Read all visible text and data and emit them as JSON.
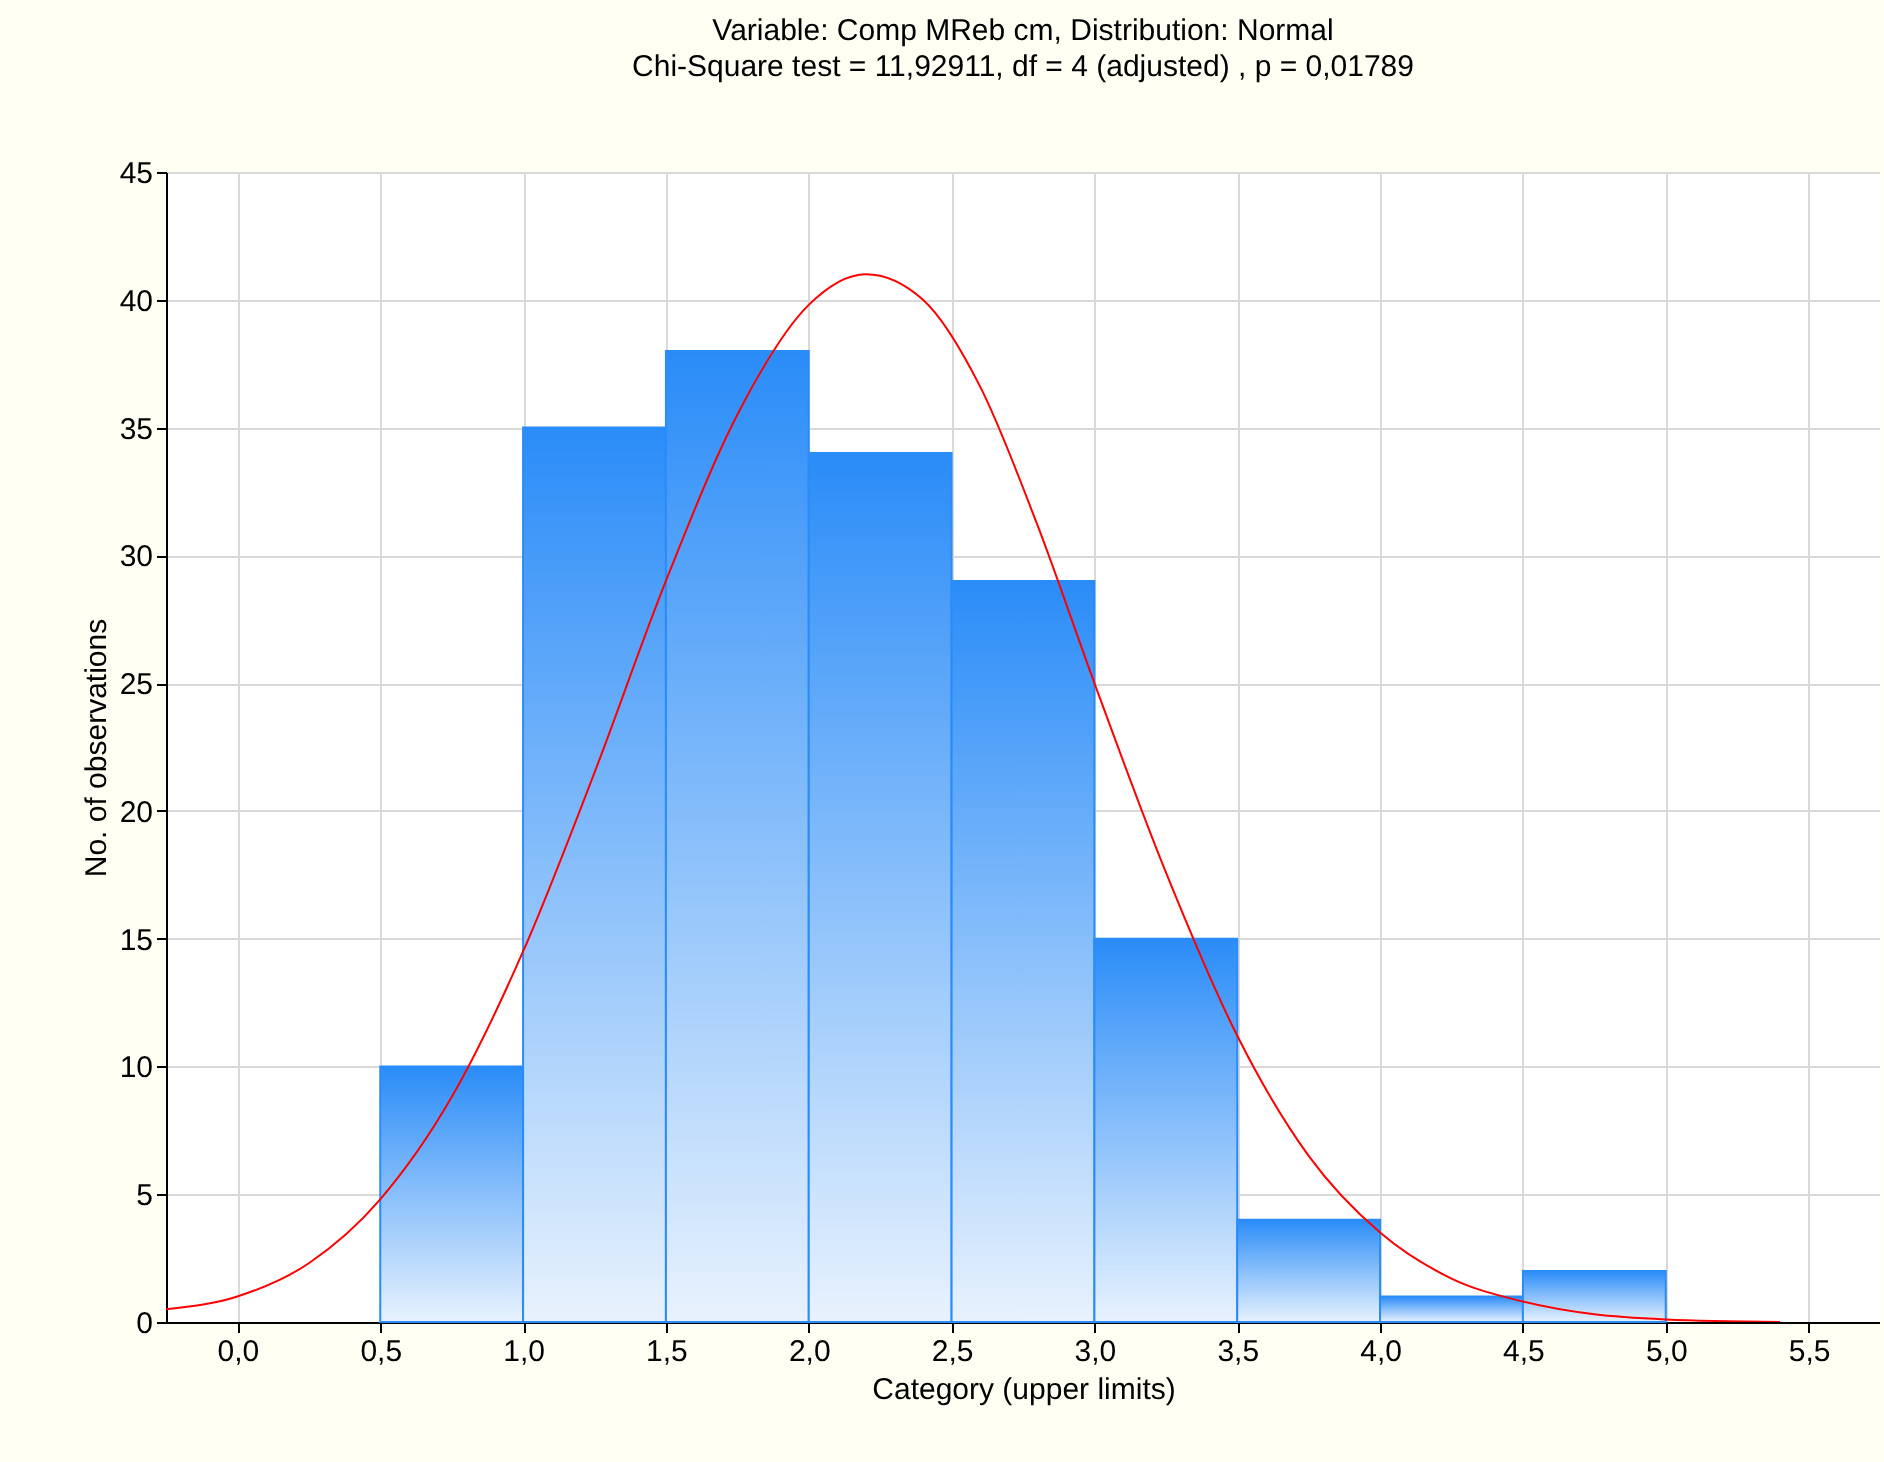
{
  "chart_data": {
    "type": "histogram",
    "title": "Variable: Comp MReb cm, Distribution: Normal",
    "subtitle": "Chi-Square test = 11,92911, df = 4 (adjusted) , p = 0,01789",
    "xlabel": "Category (upper limits)",
    "ylabel": "No. of observations",
    "bins": [
      0.5,
      1.0,
      1.5,
      2.0,
      2.5,
      3.0,
      3.5,
      4.0,
      4.5,
      5.0
    ],
    "values": [
      10,
      35,
      38,
      34,
      29,
      15,
      4,
      1,
      2
    ],
    "color": "#2a8cf8",
    "series": [
      {
        "type": "line",
        "color": "#ff0000",
        "x": [
          -0.25,
          0,
          0.25,
          0.5,
          0.75,
          1.0,
          1.25,
          1.5,
          1.75,
          2.0,
          2.2,
          2.4,
          2.6,
          2.8,
          3.0,
          3.25,
          3.5,
          3.75,
          4.0,
          4.25,
          4.5,
          4.75,
          5.0,
          5.4
        ],
        "values": [
          0.5,
          1,
          2.3,
          4.8,
          8.8,
          14.5,
          21.5,
          29,
          35.5,
          39.8,
          41,
          40,
          36.6,
          31.2,
          25,
          17.6,
          11.2,
          6.5,
          3.5,
          1.7,
          0.8,
          0.3,
          0.1,
          0
        ]
      }
    ],
    "xlim": [
      -0.25,
      5.75
    ],
    "ylim": [
      0,
      45
    ],
    "xticks": [
      {
        "value": 0,
        "label": "0,0"
      },
      {
        "value": 0.5,
        "label": "0,5"
      },
      {
        "value": 1,
        "label": "1,0"
      },
      {
        "value": 1.5,
        "label": "1,5"
      },
      {
        "value": 2,
        "label": "2,0"
      },
      {
        "value": 2.5,
        "label": "2,5"
      },
      {
        "value": 3,
        "label": "3,0"
      },
      {
        "value": 3.5,
        "label": "3,5"
      },
      {
        "value": 4,
        "label": "4,0"
      },
      {
        "value": 4.5,
        "label": "4,5"
      },
      {
        "value": 5,
        "label": "5,0"
      },
      {
        "value": 5.5,
        "label": "5,5"
      }
    ],
    "yticks": [
      0,
      5,
      10,
      15,
      20,
      25,
      30,
      35,
      40,
      45
    ],
    "grid": true
  }
}
